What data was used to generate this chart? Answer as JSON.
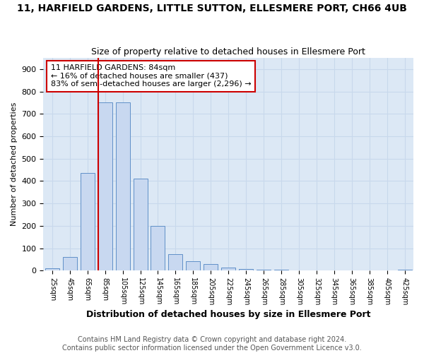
{
  "title": "11, HARFIELD GARDENS, LITTLE SUTTON, ELLESMERE PORT, CH66 4UB",
  "subtitle": "Size of property relative to detached houses in Ellesmere Port",
  "xlabel": "Distribution of detached houses by size in Ellesmere Port",
  "ylabel": "Number of detached properties",
  "footer_line1": "Contains HM Land Registry data © Crown copyright and database right 2024.",
  "footer_line2": "Contains public sector information licensed under the Open Government Licence v3.0.",
  "bar_labels": [
    "25sqm",
    "45sqm",
    "65sqm",
    "85sqm",
    "105sqm",
    "125sqm",
    "145sqm",
    "165sqm",
    "185sqm",
    "205sqm",
    "225sqm",
    "245sqm",
    "265sqm",
    "285sqm",
    "305sqm",
    "325sqm",
    "345sqm",
    "365sqm",
    "385sqm",
    "405sqm",
    "425sqm"
  ],
  "bar_values": [
    10,
    60,
    435,
    750,
    750,
    410,
    200,
    75,
    43,
    28,
    13,
    8,
    5,
    3,
    2,
    0,
    0,
    0,
    0,
    0,
    5
  ],
  "bar_color": "#c8d8f0",
  "bar_edge_color": "#6090c8",
  "annotation_title": "11 HARFIELD GARDENS: 84sqm",
  "annotation_line1": "← 16% of detached houses are smaller (437)",
  "annotation_line2": "83% of semi-detached houses are larger (2,296) →",
  "annotation_box_facecolor": "#ffffff",
  "annotation_box_edgecolor": "#cc0000",
  "vline_color": "#cc0000",
  "ylim": [
    0,
    950
  ],
  "yticks": [
    0,
    100,
    200,
    300,
    400,
    500,
    600,
    700,
    800,
    900
  ],
  "grid_color": "#c8d8ec",
  "plot_bg_color": "#dce8f5",
  "fig_bg_color": "#ffffff",
  "title_fontsize": 10,
  "subtitle_fontsize": 9,
  "xlabel_fontsize": 9,
  "ylabel_fontsize": 8,
  "tick_fontsize": 8,
  "footer_fontsize": 7,
  "vline_x_index": 2.6
}
